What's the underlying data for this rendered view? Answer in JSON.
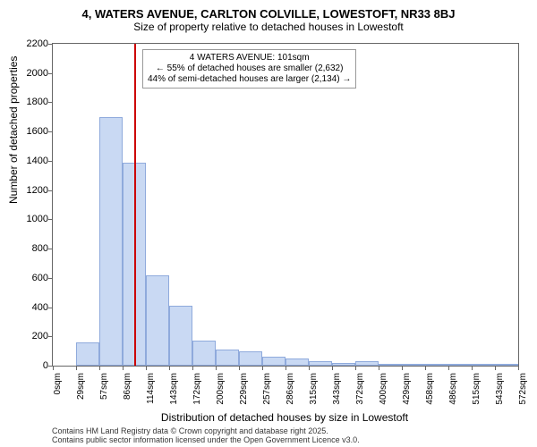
{
  "title": "4, WATERS AVENUE, CARLTON COLVILLE, LOWESTOFT, NR33 8BJ",
  "subtitle": "Size of property relative to detached houses in Lowestoft",
  "ylabel": "Number of detached properties",
  "xlabel": "Distribution of detached houses by size in Lowestoft",
  "footer1": "Contains HM Land Registry data © Crown copyright and database right 2025.",
  "footer2": "Contains public sector information licensed under the Open Government Licence v3.0.",
  "chart": {
    "ylim": [
      0,
      2200
    ],
    "yticks": [
      0,
      200,
      400,
      600,
      800,
      1000,
      1200,
      1400,
      1600,
      1800,
      2000,
      2200
    ],
    "xticks": [
      "0sqm",
      "29sqm",
      "57sqm",
      "86sqm",
      "114sqm",
      "143sqm",
      "172sqm",
      "200sqm",
      "229sqm",
      "257sqm",
      "286sqm",
      "315sqm",
      "343sqm",
      "372sqm",
      "400sqm",
      "429sqm",
      "458sqm",
      "486sqm",
      "515sqm",
      "543sqm",
      "572sqm"
    ],
    "bars": [
      0,
      160,
      1700,
      1390,
      620,
      410,
      170,
      110,
      100,
      60,
      50,
      30,
      20,
      30,
      10,
      5,
      5,
      2,
      2,
      2
    ],
    "bar_color": "#c9d9f3",
    "bar_border": "#8faadc",
    "ref_line_x": 101,
    "ref_line_color": "#cc0000",
    "x_max": 580,
    "annotation": {
      "line1": "4 WATERS AVENUE: 101sqm",
      "line2": "← 55% of detached houses are smaller (2,632)",
      "line3": "44% of semi-detached houses are larger (2,134) →"
    }
  }
}
